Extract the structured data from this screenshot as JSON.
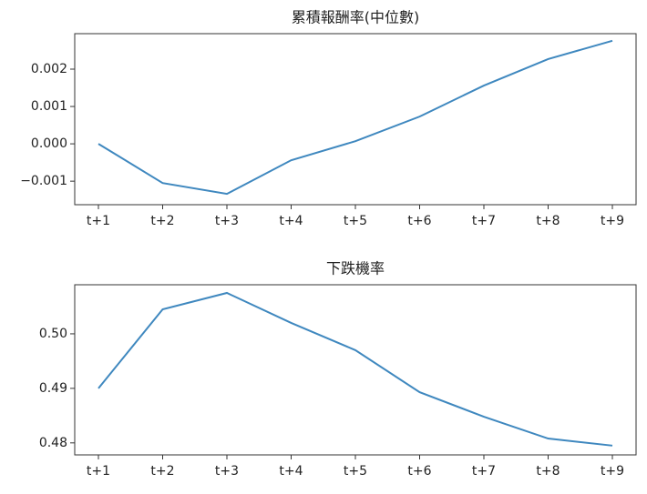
{
  "chart_data": [
    {
      "type": "line",
      "title": "累積報酬率(中位數)",
      "categories": [
        "t+1",
        "t+2",
        "t+3",
        "t+4",
        "t+5",
        "t+6",
        "t+7",
        "t+8",
        "t+9"
      ],
      "values": [
        0.0,
        -0.00105,
        -0.00134,
        -0.00044,
        7e-05,
        0.00073,
        0.00156,
        0.00227,
        0.00276
      ],
      "color": "#3f88bf",
      "ylim": [
        -0.00163,
        0.00295
      ],
      "yticks": [
        {
          "value": -0.001,
          "label": "−0.001"
        },
        {
          "value": 0,
          "label": "0.000"
        },
        0.001,
        0.002
      ]
    },
    {
      "type": "line",
      "title": "下跌機率",
      "categories": [
        "t+1",
        "t+2",
        "t+3",
        "t+4",
        "t+5",
        "t+6",
        "t+7",
        "t+8",
        "t+9"
      ],
      "values": [
        0.49,
        0.5045,
        0.5075,
        0.502,
        0.497,
        0.4893,
        0.4848,
        0.4808,
        0.4795
      ],
      "color": "#3f88bf",
      "ylim": [
        0.4778,
        0.509
      ],
      "yticks": [
        0.48,
        0.49,
        {
          "value": 0.5,
          "label": "0.50"
        }
      ]
    }
  ]
}
